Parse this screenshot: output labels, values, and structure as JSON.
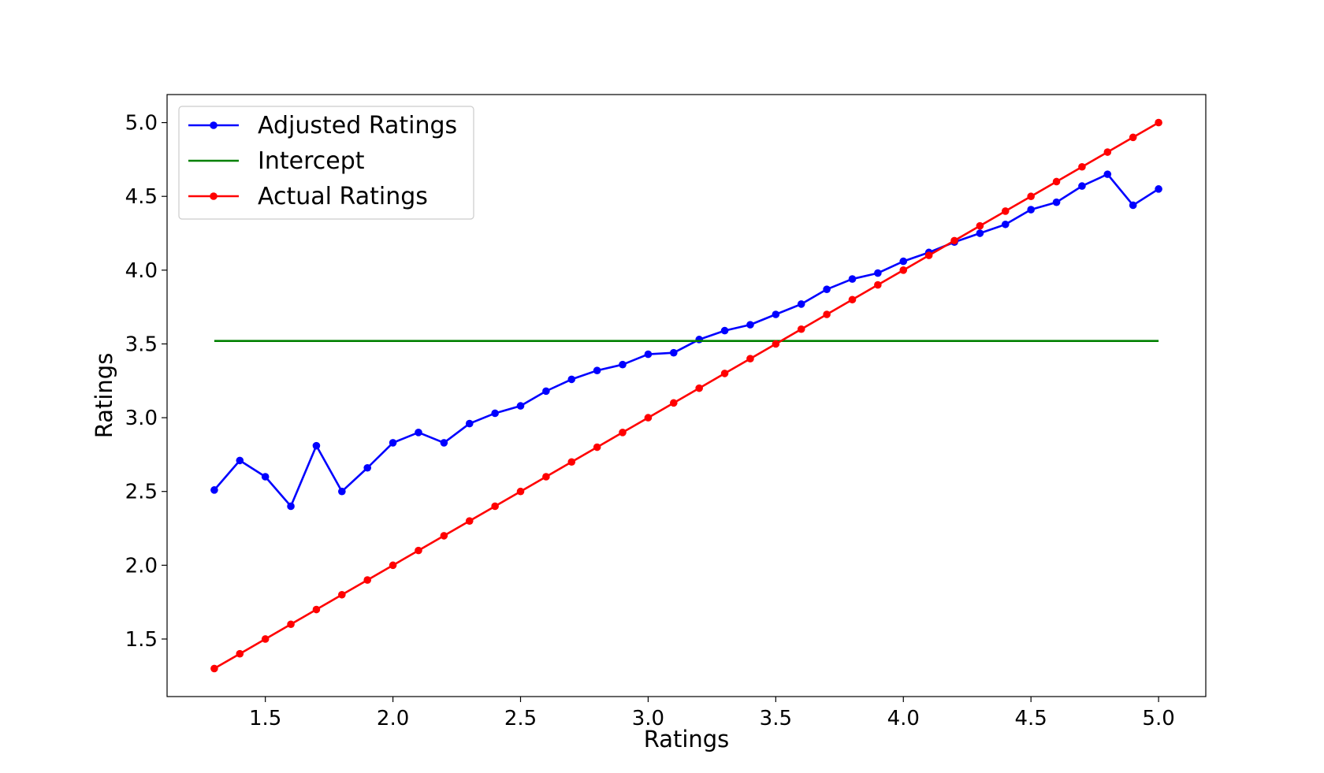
{
  "chart_data": {
    "type": "line",
    "title": "",
    "xlabel": "Ratings",
    "ylabel": "Ratings",
    "xlim": [
      1.115,
      5.185
    ],
    "ylim": [
      1.11,
      5.19
    ],
    "xticks": [
      "1.5",
      "2.0",
      "2.5",
      "3.0",
      "3.5",
      "4.0",
      "4.5",
      "5.0"
    ],
    "yticks": [
      "1.5",
      "2.0",
      "2.5",
      "3.0",
      "3.5",
      "4.0",
      "4.5",
      "5.0"
    ],
    "grid": false,
    "legend": {
      "placement": "upper-left"
    },
    "x": [
      1.3,
      1.4,
      1.5,
      1.6,
      1.7,
      1.8,
      1.9,
      2.0,
      2.1,
      2.2,
      2.3,
      2.4,
      2.5,
      2.6,
      2.7,
      2.8,
      2.9,
      3.0,
      3.1,
      3.2,
      3.3,
      3.4,
      3.5,
      3.6,
      3.7,
      3.8,
      3.9,
      4.0,
      4.1,
      4.2,
      4.3,
      4.4,
      4.5,
      4.6,
      4.7,
      4.8,
      4.9,
      5.0
    ],
    "series": [
      {
        "name": "Adjusted Ratings",
        "color": "#0000ff",
        "markers": true,
        "values": [
          2.51,
          2.71,
          2.6,
          2.4,
          2.81,
          2.5,
          2.66,
          2.83,
          2.9,
          2.83,
          2.96,
          3.03,
          3.08,
          3.18,
          3.26,
          3.32,
          3.36,
          3.43,
          3.44,
          3.53,
          3.59,
          3.63,
          3.7,
          3.77,
          3.87,
          3.94,
          3.98,
          4.06,
          4.12,
          4.19,
          4.25,
          4.31,
          4.41,
          4.46,
          4.57,
          4.65,
          4.44,
          4.55
        ]
      },
      {
        "name": "Intercept",
        "color": "#008000",
        "markers": false,
        "values": [
          3.52,
          3.52,
          3.52,
          3.52,
          3.52,
          3.52,
          3.52,
          3.52,
          3.52,
          3.52,
          3.52,
          3.52,
          3.52,
          3.52,
          3.52,
          3.52,
          3.52,
          3.52,
          3.52,
          3.52,
          3.52,
          3.52,
          3.52,
          3.52,
          3.52,
          3.52,
          3.52,
          3.52,
          3.52,
          3.52,
          3.52,
          3.52,
          3.52,
          3.52,
          3.52,
          3.52,
          3.52,
          3.52
        ]
      },
      {
        "name": "Actual Ratings",
        "color": "#ff0000",
        "markers": true,
        "values": [
          1.3,
          1.4,
          1.5,
          1.6,
          1.7,
          1.8,
          1.9,
          2.0,
          2.1,
          2.2,
          2.3,
          2.4,
          2.5,
          2.6,
          2.7,
          2.8,
          2.9,
          3.0,
          3.1,
          3.2,
          3.3,
          3.4,
          3.5,
          3.6,
          3.7,
          3.8,
          3.9,
          4.0,
          4.1,
          4.2,
          4.3,
          4.4,
          4.5,
          4.6,
          4.7,
          4.8,
          4.9,
          5.0
        ]
      }
    ]
  }
}
